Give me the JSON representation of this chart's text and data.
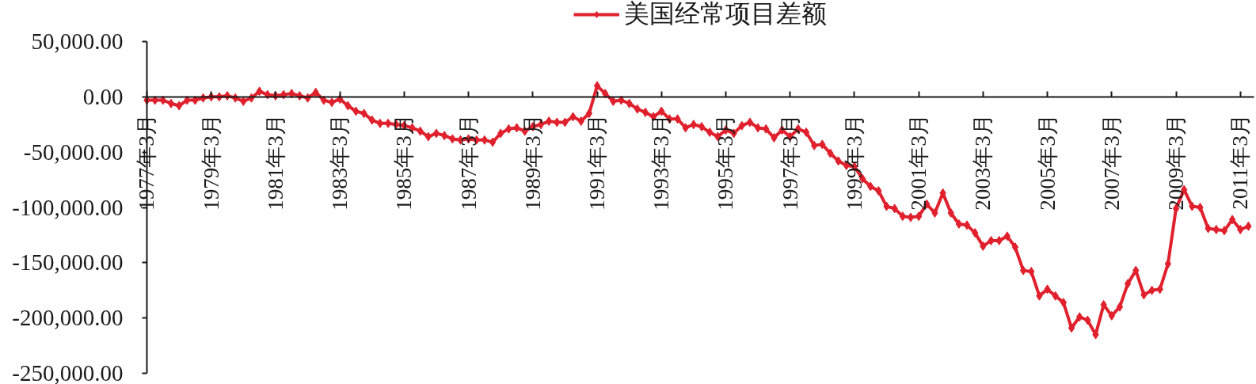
{
  "chart_data": {
    "type": "line",
    "categories": [
      "1977年3月",
      null,
      null,
      null,
      null,
      null,
      null,
      null,
      "1979年3月",
      null,
      null,
      null,
      null,
      null,
      null,
      null,
      "1981年3月",
      null,
      null,
      null,
      null,
      null,
      null,
      null,
      "1983年3月",
      null,
      null,
      null,
      null,
      null,
      null,
      null,
      "1985年3月",
      null,
      null,
      null,
      null,
      null,
      null,
      null,
      "1987年3月",
      null,
      null,
      null,
      null,
      null,
      null,
      null,
      "1989年3月",
      null,
      null,
      null,
      null,
      null,
      null,
      null,
      "1991年3月",
      null,
      null,
      null,
      null,
      null,
      null,
      null,
      "1993年3月",
      null,
      null,
      null,
      null,
      null,
      null,
      null,
      "1995年3月",
      null,
      null,
      null,
      null,
      null,
      null,
      null,
      "1997年3月",
      null,
      null,
      null,
      null,
      null,
      null,
      null,
      "1999年3月",
      null,
      null,
      null,
      null,
      null,
      null,
      null,
      "2001年3月",
      null,
      null,
      null,
      null,
      null,
      null,
      null,
      "2003年3月",
      null,
      null,
      null,
      null,
      null,
      null,
      null,
      "2005年3月",
      null,
      null,
      null,
      null,
      null,
      null,
      null,
      "2007年3月",
      null,
      null,
      null,
      null,
      null,
      null,
      null,
      "2009年3月",
      null,
      null,
      null,
      null,
      null,
      null,
      null,
      "2011年3月",
      null
    ],
    "series": [
      {
        "name": "美国经常项目差额",
        "color": "#e0212d",
        "values": [
          -3000,
          -3000,
          -3000,
          -6000,
          -8000,
          -3000,
          -3000,
          -1000,
          0,
          0,
          1000,
          -1000,
          -4000,
          -1000,
          5000,
          2000,
          1000,
          2000,
          3000,
          1000,
          -1000,
          4000,
          -3000,
          -5000,
          -2000,
          -8000,
          -13000,
          -15000,
          -21000,
          -24000,
          -24000,
          -25000,
          -26000,
          -28000,
          -31000,
          -36000,
          -33000,
          -35000,
          -38000,
          -39000,
          -38000,
          -39000,
          -39000,
          -41000,
          -33000,
          -29000,
          -28000,
          -31000,
          -27000,
          -25000,
          -22000,
          -23000,
          -23000,
          -18000,
          -22000,
          -15000,
          10000,
          3000,
          -4000,
          -3000,
          -6000,
          -11000,
          -14000,
          -18000,
          -13000,
          -20000,
          -20000,
          -28000,
          -25000,
          -27000,
          -32000,
          -36000,
          -30000,
          -33000,
          -26000,
          -23000,
          -28000,
          -29000,
          -37000,
          -30000,
          -36000,
          -29000,
          -32000,
          -44000,
          -43000,
          -51000,
          -58000,
          -62000,
          -63000,
          -74000,
          -81000,
          -85000,
          -99000,
          -101000,
          -108000,
          -109000,
          -108000,
          -97000,
          -105000,
          -87000,
          -105000,
          -115000,
          -116000,
          -123000,
          -135000,
          -130000,
          -130000,
          -126000,
          -136000,
          -157000,
          -158000,
          -180000,
          -174000,
          -180000,
          -186000,
          -209000,
          -199000,
          -202000,
          -215000,
          -188000,
          -198000,
          -190000,
          -169000,
          -157000,
          -179000,
          -175000,
          -174000,
          -151000,
          -101000,
          -84000,
          -99000,
          -100000,
          -119000,
          -120000,
          -121000,
          -111000,
          -120000,
          -117000
        ]
      }
    ],
    "ylim": [
      -250000,
      50000
    ],
    "yticks": [
      {
        "value": 50000,
        "label": "50,000.00"
      },
      {
        "value": 0,
        "label": "0.00"
      },
      {
        "value": -50000,
        "label": "-50,000.00"
      },
      {
        "value": -100000,
        "label": "-100,000.00"
      },
      {
        "value": -150000,
        "label": "-150,000.00"
      },
      {
        "value": -200000,
        "label": "-200,000.00"
      },
      {
        "value": -250000,
        "label": "-250,000.00"
      }
    ],
    "grid": false,
    "legend": "top",
    "marker": "diamond",
    "line_style": "solid"
  }
}
